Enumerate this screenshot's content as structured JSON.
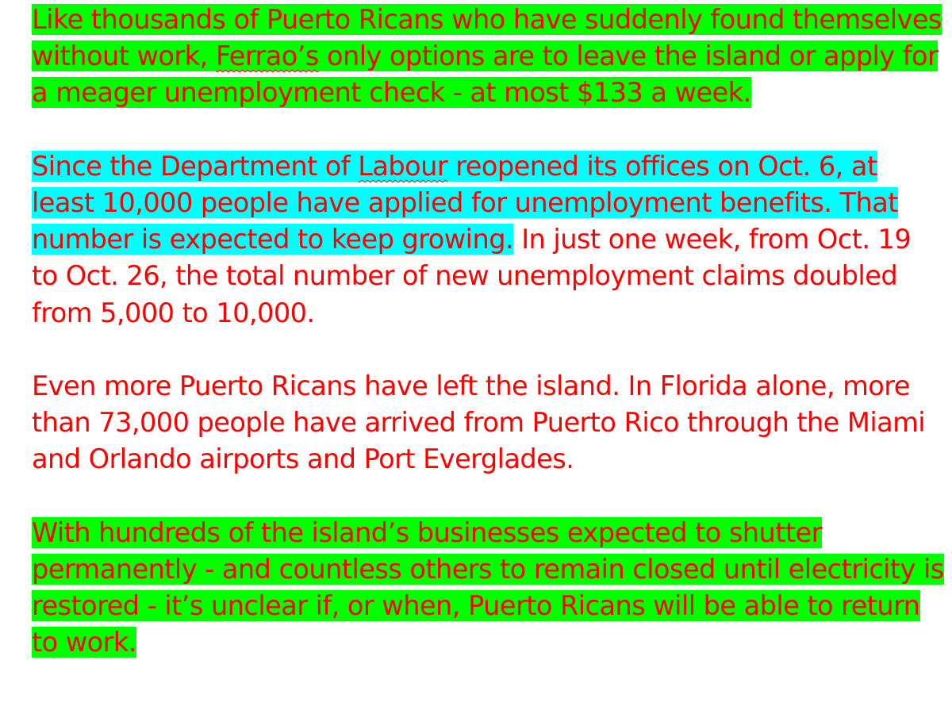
{
  "document": {
    "text_color": "#ff0000",
    "highlight_green": "#00ff00",
    "highlight_cyan": "#00ffff",
    "paragraph_1": {
      "before": "Like thousands of Puerto Ricans who have suddenly found themselves without work, ",
      "flagged_word": "Ferrao’s",
      "after": " only options are to leave the island or apply for a meager unemployment check - at most $133 a week."
    },
    "paragraph_2": {
      "hl_before": "Since the Department of ",
      "flagged_word": "Labour",
      "hl_after": " reopened its offices on Oct. 6, at least 10,000 people have applied for unemployment benefits. That number is expected to keep growing.",
      "plain": " In just one week, from Oct. 19 to Oct. 26, the total number of new unemployment claims doubled from 5,000 to 10,000."
    },
    "paragraph_3": {
      "text": "Even more Puerto Ricans have left the island. In Florida alone, more than 73,000 people have arrived from Puerto Rico through the Miami and Orlando airports and Port Everglades."
    },
    "paragraph_4": {
      "text": "With hundreds of the island’s businesses expected to shutter permanently - and countless others to remain closed until electricity is restored - it’s unclear if, or when, Puerto Ricans will be able to return to work."
    }
  }
}
